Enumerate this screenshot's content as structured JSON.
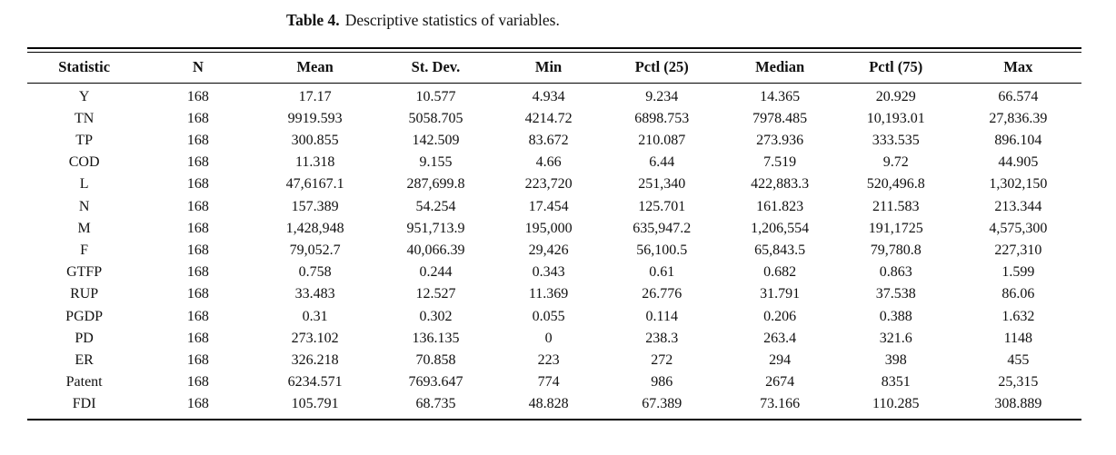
{
  "caption": {
    "label": "Table 4.",
    "text": "Descriptive statistics of variables."
  },
  "table": {
    "columns": [
      "Statistic",
      "N",
      "Mean",
      "St. Dev.",
      "Min",
      "Pctl (25)",
      "Median",
      "Pctl (75)",
      "Max"
    ],
    "rows": [
      [
        "Y",
        "168",
        "17.17",
        "10.577",
        "4.934",
        "9.234",
        "14.365",
        "20.929",
        "66.574"
      ],
      [
        "TN",
        "168",
        "9919.593",
        "5058.705",
        "4214.72",
        "6898.753",
        "7978.485",
        "10,193.01",
        "27,836.39"
      ],
      [
        "TP",
        "168",
        "300.855",
        "142.509",
        "83.672",
        "210.087",
        "273.936",
        "333.535",
        "896.104"
      ],
      [
        "COD",
        "168",
        "11.318",
        "9.155",
        "4.66",
        "6.44",
        "7.519",
        "9.72",
        "44.905"
      ],
      [
        "L",
        "168",
        "47,6167.1",
        "287,699.8",
        "223,720",
        "251,340",
        "422,883.3",
        "520,496.8",
        "1,302,150"
      ],
      [
        "N",
        "168",
        "157.389",
        "54.254",
        "17.454",
        "125.701",
        "161.823",
        "211.583",
        "213.344"
      ],
      [
        "M",
        "168",
        "1,428,948",
        "951,713.9",
        "195,000",
        "635,947.2",
        "1,206,554",
        "191,1725",
        "4,575,300"
      ],
      [
        "F",
        "168",
        "79,052.7",
        "40,066.39",
        "29,426",
        "56,100.5",
        "65,843.5",
        "79,780.8",
        "227,310"
      ],
      [
        "GTFP",
        "168",
        "0.758",
        "0.244",
        "0.343",
        "0.61",
        "0.682",
        "0.863",
        "1.599"
      ],
      [
        "RUP",
        "168",
        "33.483",
        "12.527",
        "11.369",
        "26.776",
        "31.791",
        "37.538",
        "86.06"
      ],
      [
        "PGDP",
        "168",
        "0.31",
        "0.302",
        "0.055",
        "0.114",
        "0.206",
        "0.388",
        "1.632"
      ],
      [
        "PD",
        "168",
        "273.102",
        "136.135",
        "0",
        "238.3",
        "263.4",
        "321.6",
        "1148"
      ],
      [
        "ER",
        "168",
        "326.218",
        "70.858",
        "223",
        "272",
        "294",
        "398",
        "455"
      ],
      [
        "Patent",
        "168",
        "6234.571",
        "7693.647",
        "774",
        "986",
        "2674",
        "8351",
        "25,315"
      ],
      [
        "FDI",
        "168",
        "105.791",
        "68.735",
        "48.828",
        "67.389",
        "73.166",
        "110.285",
        "308.889"
      ]
    ]
  },
  "colors": {
    "background": "#ffffff",
    "text": "#111111",
    "rule": "#000000"
  }
}
